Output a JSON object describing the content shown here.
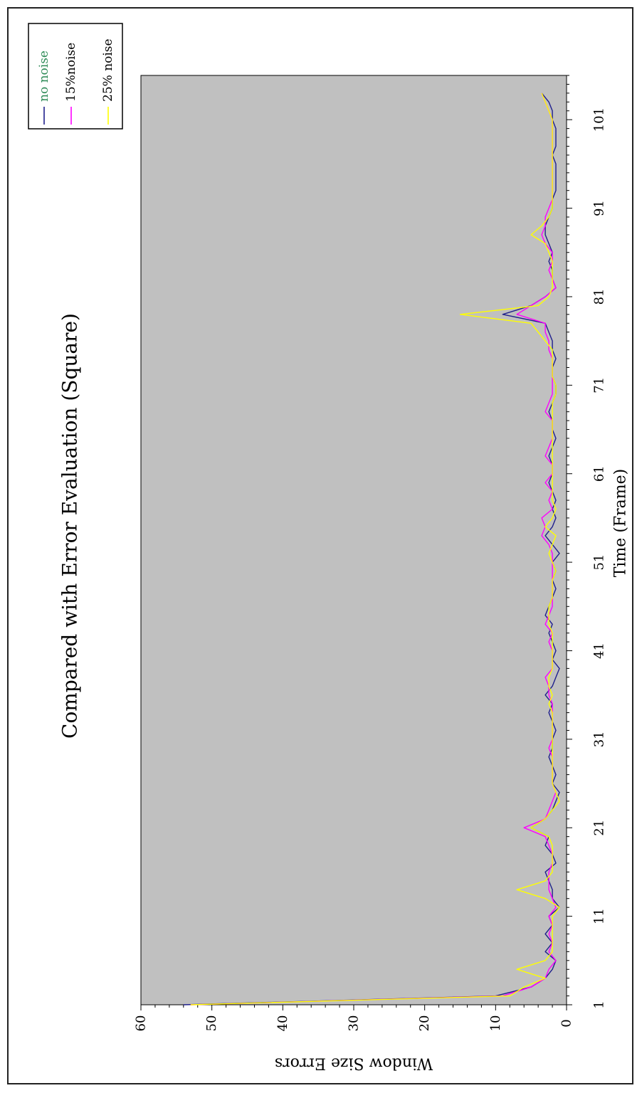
{
  "chart_data": {
    "type": "line",
    "title": "Compared with Error Evaluation (Square)",
    "xlabel": "Time (Frame)",
    "ylabel": "Window Size Errors",
    "xticks": [
      "1",
      "11",
      "21",
      "31",
      "41",
      "51",
      "61",
      "71",
      "81",
      "91",
      "101"
    ],
    "yticks": [
      "0",
      "10",
      "20",
      "30",
      "40",
      "50",
      "60"
    ],
    "xlim": [
      1,
      106
    ],
    "ylim": [
      0,
      60
    ],
    "grid": false,
    "orientation": "rotated-90-clockwise",
    "legend_position": "top-right",
    "plot_background": "#c0c0c0",
    "series": [
      {
        "name": "no noise",
        "color": "#1f1f8c",
        "legend_text_color": "#2e8b57",
        "points": [
          [
            1,
            54
          ],
          [
            2,
            10
          ],
          [
            3,
            5
          ],
          [
            4,
            3
          ],
          [
            5,
            2
          ],
          [
            6,
            1.5
          ],
          [
            7,
            3
          ],
          [
            8,
            2
          ],
          [
            9,
            3
          ],
          [
            10,
            2
          ],
          [
            11,
            2.5
          ],
          [
            12,
            1
          ],
          [
            13,
            2
          ],
          [
            14,
            2
          ],
          [
            15,
            2.5
          ],
          [
            16,
            3
          ],
          [
            17,
            1.5
          ],
          [
            18,
            2
          ],
          [
            19,
            3
          ],
          [
            20,
            2.5
          ],
          [
            21,
            5
          ],
          [
            22,
            3
          ],
          [
            23,
            2
          ],
          [
            24,
            1.5
          ],
          [
            25,
            1
          ],
          [
            26,
            2
          ],
          [
            27,
            1.5
          ],
          [
            28,
            2
          ],
          [
            29,
            2.5
          ],
          [
            30,
            2
          ],
          [
            31,
            2
          ],
          [
            32,
            1.5
          ],
          [
            33,
            2
          ],
          [
            34,
            2.5
          ],
          [
            35,
            2
          ],
          [
            36,
            3
          ],
          [
            37,
            2
          ],
          [
            38,
            1.5
          ],
          [
            39,
            1
          ],
          [
            40,
            2
          ],
          [
            41,
            1.5
          ],
          [
            42,
            2
          ],
          [
            43,
            2.5
          ],
          [
            44,
            2
          ],
          [
            45,
            3
          ],
          [
            46,
            2.5
          ],
          [
            47,
            2
          ],
          [
            48,
            1.5
          ],
          [
            49,
            2
          ],
          [
            50,
            1.5
          ],
          [
            51,
            2
          ],
          [
            52,
            1
          ],
          [
            53,
            2
          ],
          [
            54,
            3
          ],
          [
            55,
            2
          ],
          [
            56,
            1.5
          ],
          [
            57,
            2
          ],
          [
            58,
            1.5
          ],
          [
            59,
            2
          ],
          [
            60,
            2.5
          ],
          [
            61,
            2
          ],
          [
            62,
            2
          ],
          [
            63,
            2.5
          ],
          [
            64,
            2
          ],
          [
            65,
            1.5
          ],
          [
            66,
            2
          ],
          [
            67,
            2
          ],
          [
            68,
            2.5
          ],
          [
            69,
            2
          ],
          [
            70,
            1.5
          ],
          [
            71,
            1.5
          ],
          [
            72,
            2
          ],
          [
            73,
            2
          ],
          [
            74,
            1.5
          ],
          [
            75,
            2
          ],
          [
            76,
            2
          ],
          [
            77,
            2.5
          ],
          [
            78,
            3
          ],
          [
            79,
            9
          ],
          [
            80,
            5
          ],
          [
            81,
            3
          ],
          [
            82,
            1.5
          ],
          [
            83,
            2
          ],
          [
            84,
            2
          ],
          [
            85,
            2.5
          ],
          [
            86,
            2
          ],
          [
            87,
            2.5
          ],
          [
            88,
            3
          ],
          [
            89,
            3
          ],
          [
            90,
            2.5
          ],
          [
            91,
            2
          ],
          [
            92,
            2
          ],
          [
            93,
            1.5
          ],
          [
            94,
            1.5
          ],
          [
            95,
            1.5
          ],
          [
            96,
            1.5
          ],
          [
            97,
            2
          ],
          [
            98,
            1.5
          ],
          [
            99,
            1.5
          ],
          [
            100,
            1.5
          ],
          [
            101,
            2
          ],
          [
            102,
            2
          ],
          [
            103,
            2.5
          ],
          [
            104,
            3.5
          ]
        ]
      },
      {
        "name": "15%noise",
        "color": "#ff00ff",
        "points": [
          [
            1,
            53
          ],
          [
            2,
            9
          ],
          [
            3,
            5
          ],
          [
            4,
            3
          ],
          [
            5,
            2.5
          ],
          [
            6,
            1.5
          ],
          [
            7,
            2.5
          ],
          [
            8,
            2
          ],
          [
            9,
            2.5
          ],
          [
            10,
            2
          ],
          [
            11,
            2.5
          ],
          [
            12,
            1.5
          ],
          [
            13,
            2
          ],
          [
            14,
            2.5
          ],
          [
            15,
            2.5
          ],
          [
            16,
            2.5
          ],
          [
            17,
            2
          ],
          [
            18,
            2
          ],
          [
            19,
            2.5
          ],
          [
            20,
            3
          ],
          [
            21,
            6
          ],
          [
            22,
            3
          ],
          [
            23,
            2.5
          ],
          [
            24,
            2
          ],
          [
            25,
            1.5
          ],
          [
            26,
            2
          ],
          [
            27,
            2
          ],
          [
            28,
            2
          ],
          [
            29,
            2
          ],
          [
            30,
            2.5
          ],
          [
            31,
            2
          ],
          [
            32,
            2
          ],
          [
            33,
            2
          ],
          [
            34,
            2
          ],
          [
            35,
            2
          ],
          [
            36,
            2.5
          ],
          [
            37,
            2.5
          ],
          [
            38,
            3
          ],
          [
            39,
            2
          ],
          [
            40,
            2
          ],
          [
            41,
            2
          ],
          [
            42,
            2.5
          ],
          [
            43,
            2
          ],
          [
            44,
            3
          ],
          [
            45,
            2.5
          ],
          [
            46,
            2
          ],
          [
            47,
            2
          ],
          [
            48,
            2
          ],
          [
            49,
            2
          ],
          [
            50,
            2
          ],
          [
            51,
            2
          ],
          [
            52,
            2
          ],
          [
            53,
            2.5
          ],
          [
            54,
            3.5
          ],
          [
            55,
            3
          ],
          [
            56,
            3.5
          ],
          [
            57,
            2
          ],
          [
            58,
            2.5
          ],
          [
            59,
            2
          ],
          [
            60,
            3
          ],
          [
            61,
            2
          ],
          [
            62,
            2
          ],
          [
            63,
            3
          ],
          [
            64,
            2.5
          ],
          [
            65,
            2
          ],
          [
            66,
            2
          ],
          [
            67,
            2
          ],
          [
            68,
            3
          ],
          [
            69,
            2.5
          ],
          [
            70,
            2
          ],
          [
            71,
            2
          ],
          [
            72,
            2
          ],
          [
            73,
            2
          ],
          [
            74,
            2
          ],
          [
            75,
            2.5
          ],
          [
            76,
            2.5
          ],
          [
            77,
            3
          ],
          [
            78,
            3
          ],
          [
            79,
            7
          ],
          [
            80,
            5
          ],
          [
            81,
            3
          ],
          [
            82,
            1.5
          ],
          [
            83,
            2
          ],
          [
            84,
            2.5
          ],
          [
            85,
            2
          ],
          [
            86,
            2
          ],
          [
            87,
            3
          ],
          [
            88,
            3.5
          ],
          [
            89,
            3
          ],
          [
            90,
            3
          ],
          [
            91,
            2.5
          ],
          [
            92,
            2
          ],
          [
            93,
            2
          ],
          [
            94,
            2
          ],
          [
            95,
            2
          ],
          [
            96,
            2
          ],
          [
            97,
            2
          ],
          [
            98,
            2
          ],
          [
            99,
            2
          ],
          [
            100,
            2
          ],
          [
            101,
            2
          ],
          [
            102,
            2.5
          ],
          [
            103,
            3
          ],
          [
            104,
            3.5
          ]
        ]
      },
      {
        "name": "25% noise",
        "color": "#ffff00",
        "points": [
          [
            1,
            53
          ],
          [
            2,
            8
          ],
          [
            3,
            6
          ],
          [
            4,
            3
          ],
          [
            5,
            7
          ],
          [
            6,
            3
          ],
          [
            7,
            2
          ],
          [
            8,
            2
          ],
          [
            9,
            2
          ],
          [
            10,
            2
          ],
          [
            11,
            2
          ],
          [
            12,
            1
          ],
          [
            13,
            3
          ],
          [
            14,
            7
          ],
          [
            15,
            3
          ],
          [
            16,
            2
          ],
          [
            17,
            2
          ],
          [
            18,
            2
          ],
          [
            19,
            2
          ],
          [
            20,
            2.5
          ],
          [
            21,
            5
          ],
          [
            22,
            3
          ],
          [
            23,
            2
          ],
          [
            24,
            1
          ],
          [
            25,
            1.5
          ],
          [
            26,
            2
          ],
          [
            27,
            2
          ],
          [
            28,
            2
          ],
          [
            29,
            2
          ],
          [
            30,
            2
          ],
          [
            31,
            2
          ],
          [
            32,
            2
          ],
          [
            33,
            2
          ],
          [
            34,
            2
          ],
          [
            35,
            2.5
          ],
          [
            36,
            2
          ],
          [
            37,
            2.5
          ],
          [
            38,
            2.5
          ],
          [
            39,
            2
          ],
          [
            40,
            2
          ],
          [
            41,
            2
          ],
          [
            42,
            2
          ],
          [
            43,
            2
          ],
          [
            44,
            2.5
          ],
          [
            45,
            2.5
          ],
          [
            46,
            2.5
          ],
          [
            47,
            2
          ],
          [
            48,
            2
          ],
          [
            49,
            2
          ],
          [
            50,
            1.5
          ],
          [
            51,
            2
          ],
          [
            52,
            2.5
          ],
          [
            53,
            2
          ],
          [
            54,
            1.5
          ],
          [
            55,
            3
          ],
          [
            56,
            2
          ],
          [
            57,
            1.5
          ],
          [
            58,
            2
          ],
          [
            59,
            2
          ],
          [
            60,
            2
          ],
          [
            61,
            2
          ],
          [
            62,
            2
          ],
          [
            63,
            2
          ],
          [
            64,
            2
          ],
          [
            65,
            2
          ],
          [
            66,
            2
          ],
          [
            67,
            2
          ],
          [
            68,
            2
          ],
          [
            69,
            2
          ],
          [
            70,
            1.5
          ],
          [
            71,
            1.5
          ],
          [
            72,
            2
          ],
          [
            73,
            2
          ],
          [
            74,
            2
          ],
          [
            75,
            2
          ],
          [
            76,
            3
          ],
          [
            77,
            4
          ],
          [
            78,
            5
          ],
          [
            79,
            15
          ],
          [
            80,
            4
          ],
          [
            81,
            2.5
          ],
          [
            82,
            2
          ],
          [
            83,
            2
          ],
          [
            84,
            2
          ],
          [
            85,
            2
          ],
          [
            86,
            2.5
          ],
          [
            87,
            3
          ],
          [
            88,
            5
          ],
          [
            89,
            3.5
          ],
          [
            90,
            2.5
          ],
          [
            91,
            2
          ],
          [
            92,
            2
          ],
          [
            93,
            2
          ],
          [
            94,
            2
          ],
          [
            95,
            2
          ],
          [
            96,
            2
          ],
          [
            97,
            2
          ],
          [
            98,
            2
          ],
          [
            99,
            2
          ],
          [
            100,
            2
          ],
          [
            101,
            2
          ],
          [
            102,
            2.5
          ],
          [
            103,
            3
          ],
          [
            104,
            3.5
          ]
        ]
      }
    ]
  }
}
